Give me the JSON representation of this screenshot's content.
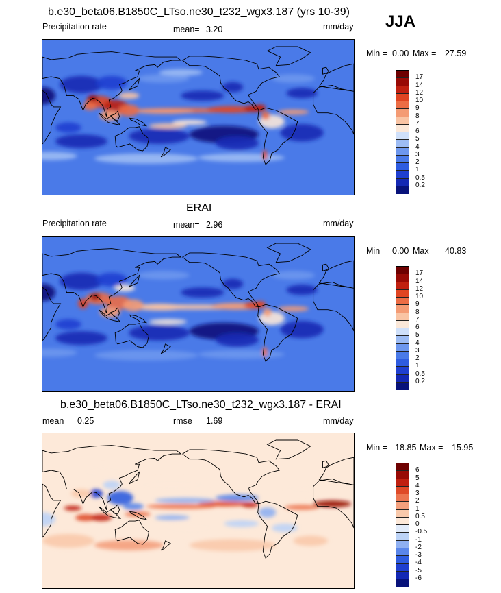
{
  "season": "JJA",
  "chart_data": [
    {
      "type": "heatmap",
      "title": "b.e30_beta06.B1850C_LTso.ne30_t232_wgx3.187 (yrs 10-39)",
      "variable": "Precipitation rate",
      "mean_label": "mean=",
      "mean": "3.20",
      "units": "mm/day",
      "min_label": "Min =",
      "min": "0.00",
      "max_label": "Max =",
      "max": "27.59",
      "colorbar": {
        "levels": [
          "0.2",
          "0.5",
          "1",
          "2",
          "3",
          "4",
          "5",
          "6",
          "7",
          "8",
          "9",
          "10",
          "12",
          "14",
          "17"
        ],
        "colors": [
          "#08127a",
          "#1428b4",
          "#1f3fd0",
          "#2e5ce0",
          "#4a7ae8",
          "#6d97ee",
          "#9dbcf4",
          "#cfe0fa",
          "#fbe8d9",
          "#f9c4a4",
          "#f49b74",
          "#ec6d45",
          "#e04522",
          "#c02010",
          "#980a05",
          "#6e0000"
        ]
      }
    },
    {
      "type": "heatmap",
      "title": "ERAI",
      "variable": "Precipitation rate",
      "mean_label": "mean=",
      "mean": "2.96",
      "units": "mm/day",
      "min_label": "Min =",
      "min": "0.00",
      "max_label": "Max =",
      "max": "40.83",
      "colorbar": {
        "levels": [
          "0.2",
          "0.5",
          "1",
          "2",
          "3",
          "4",
          "5",
          "6",
          "7",
          "8",
          "9",
          "10",
          "12",
          "14",
          "17"
        ],
        "colors": [
          "#08127a",
          "#1428b4",
          "#1f3fd0",
          "#2e5ce0",
          "#4a7ae8",
          "#6d97ee",
          "#9dbcf4",
          "#cfe0fa",
          "#fbe8d9",
          "#f9c4a4",
          "#f49b74",
          "#ec6d45",
          "#e04522",
          "#c02010",
          "#980a05",
          "#6e0000"
        ]
      }
    },
    {
      "type": "heatmap",
      "title": "b.e30_beta06.B1850C_LTso.ne30_t232_wgx3.187 - ERAI",
      "mean_label": "mean =",
      "mean": "0.25",
      "rmse_label": "rmse =",
      "rmse": "1.69",
      "units": "mm/day",
      "min_label": "Min =",
      "min": "-18.85",
      "max_label": "Max =",
      "max": "15.95",
      "colorbar": {
        "levels": [
          "-6",
          "-5",
          "-4",
          "-3",
          "-2",
          "-1",
          "-0.5",
          "0",
          "0.5",
          "1",
          "2",
          "3",
          "4",
          "5",
          "6"
        ],
        "colors": [
          "#08127a",
          "#1428b4",
          "#1f3fd0",
          "#2e5ce0",
          "#5a86ea",
          "#8fb0f2",
          "#bcd3f7",
          "#e2ecfb",
          "#fde9d9",
          "#f9c9ab",
          "#f4a07d",
          "#ec7550",
          "#df4a28",
          "#c02010",
          "#980a05",
          "#6e0000"
        ]
      }
    }
  ]
}
